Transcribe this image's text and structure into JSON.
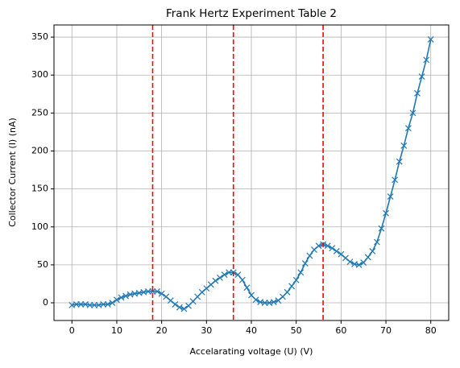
{
  "chart_data": {
    "type": "line",
    "title": "Frank Hertz Experiment Table 2",
    "xlabel": "Accelarating voltage (U) (V)",
    "ylabel": "Collector Current (I) (nA)",
    "x": [
      0,
      1,
      2,
      3,
      4,
      5,
      6,
      7,
      8,
      9,
      10,
      11,
      12,
      13,
      14,
      15,
      16,
      17,
      18,
      19,
      20,
      21,
      22,
      23,
      24,
      25,
      26,
      27,
      28,
      29,
      30,
      31,
      32,
      33,
      34,
      35,
      36,
      37,
      38,
      39,
      40,
      41,
      42,
      43,
      44,
      45,
      46,
      47,
      48,
      49,
      50,
      51,
      52,
      53,
      54,
      55,
      56,
      57,
      58,
      59,
      60,
      61,
      62,
      63,
      64,
      65,
      66,
      67,
      68,
      69,
      70,
      71,
      72,
      73,
      74,
      75,
      76,
      77,
      78,
      79,
      80
    ],
    "series": [
      {
        "color": "#1f77b4",
        "marker": "x",
        "values": [
          -3,
          -2,
          -2,
          -2,
          -3,
          -3,
          -3,
          -2,
          -2,
          0,
          4,
          7,
          9,
          11,
          12,
          13,
          14,
          15,
          15,
          15,
          12,
          8,
          3,
          -2,
          -6,
          -8,
          -4,
          2,
          8,
          14,
          19,
          24,
          29,
          33,
          37,
          40,
          40,
          37,
          30,
          20,
          10,
          4,
          1,
          0,
          0,
          1,
          3,
          8,
          14,
          22,
          30,
          40,
          52,
          62,
          70,
          75,
          77,
          75,
          72,
          68,
          64,
          59,
          54,
          51,
          50,
          53,
          60,
          68,
          80,
          98,
          118,
          140,
          162,
          186,
          207,
          230,
          250,
          276,
          298,
          320,
          347
        ]
      }
    ],
    "vlines": [
      18,
      36,
      56
    ],
    "vline_color": "#ff0000",
    "xlim": [
      -4,
      84
    ],
    "xticks": [
      0,
      10,
      20,
      30,
      40,
      50,
      60,
      70,
      80
    ],
    "ylim": [
      -23.3,
      366
    ],
    "yticks": [
      0,
      50,
      100,
      150,
      200,
      250,
      300,
      350
    ],
    "grid": true
  }
}
